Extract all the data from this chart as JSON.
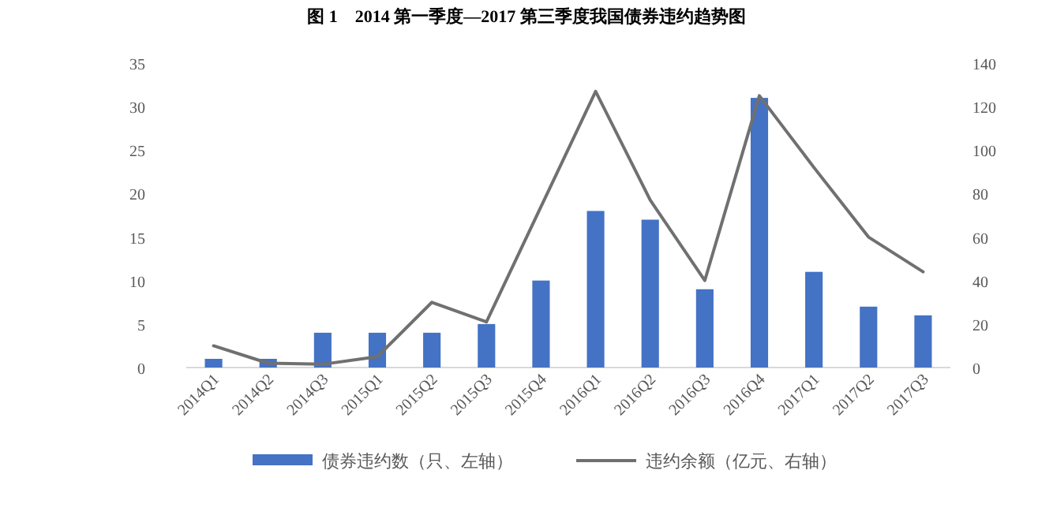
{
  "chart_data": {
    "type": "bar",
    "title": "图 1　2014 第一季度—2017 第三季度我国债券违约趋势图",
    "categories": [
      "2014Q1",
      "2014Q2",
      "2014Q3",
      "2015Q1",
      "2015Q2",
      "2015Q3",
      "2015Q4",
      "2016Q1",
      "2016Q2",
      "2016Q3",
      "2016Q4",
      "2017Q1",
      "2017Q2",
      "2017Q3"
    ],
    "series": [
      {
        "name": "债券违约数（只、左轴）",
        "color": "#4472c4",
        "values": [
          1,
          1,
          4,
          4,
          4,
          5,
          10,
          18,
          17,
          9,
          31,
          11,
          7,
          6
        ]
      },
      {
        "name": "违约余额（亿元、右轴）",
        "type": "line",
        "axis": "y2",
        "color": "#707070",
        "values": [
          10,
          2,
          1.5,
          5,
          30,
          21,
          74,
          127,
          77,
          40,
          125,
          92,
          60,
          44
        ]
      }
    ],
    "ylim": [
      0,
      35
    ],
    "yticks": [
      0,
      5,
      10,
      15,
      20,
      25,
      30,
      35
    ],
    "y2lim": [
      0,
      140
    ],
    "y2ticks": [
      0,
      20,
      40,
      60,
      80,
      100,
      120,
      140
    ],
    "grid": false,
    "legend": "bottom",
    "marker": "none",
    "line_style": "solid"
  }
}
